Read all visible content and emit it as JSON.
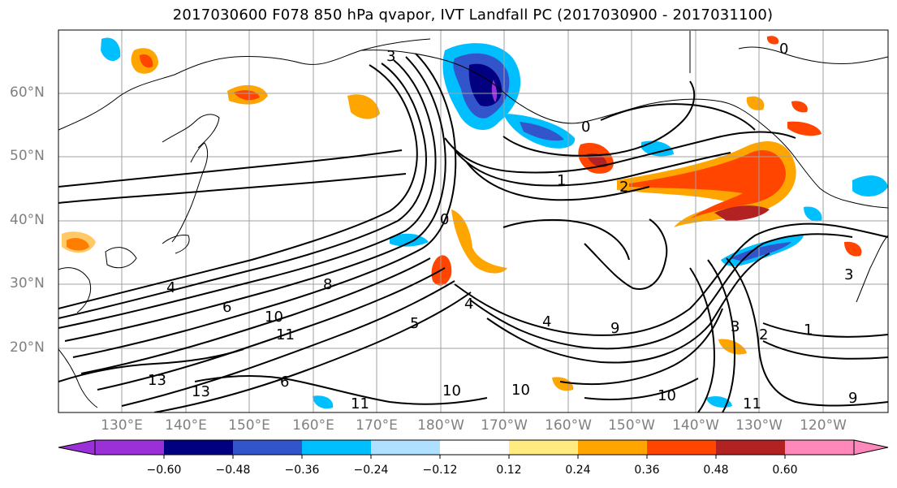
{
  "title": "2017030600 F078 850 hPa qvapor, IVT Landfall PC (2017030900 - 2017031100)",
  "lat_labels": [
    "60°N",
    "50°N",
    "40°N",
    "30°N",
    "20°N"
  ],
  "lon_labels": [
    "130°E",
    "140°E",
    "150°E",
    "160°E",
    "170°E",
    "180°W",
    "170°W",
    "160°W",
    "150°W",
    "140°W",
    "130°W",
    "120°W"
  ],
  "colorbar": {
    "ticks": [
      "−0.60",
      "−0.48",
      "−0.36",
      "−0.24",
      "−0.12",
      "0.12",
      "0.24",
      "0.36",
      "0.48",
      "0.60"
    ],
    "colors": [
      "#9b30d9",
      "#000080",
      "#3355cc",
      "#00bfff",
      "#b0e0ff",
      "#ffffff",
      "#ffeb80",
      "#ffa500",
      "#ff4500",
      "#b22222",
      "#ff88bb"
    ]
  },
  "contour_labels": [
    "1",
    "2",
    "3",
    "0",
    "4",
    "5",
    "6",
    "8",
    "9",
    "10",
    "11",
    "13"
  ]
}
